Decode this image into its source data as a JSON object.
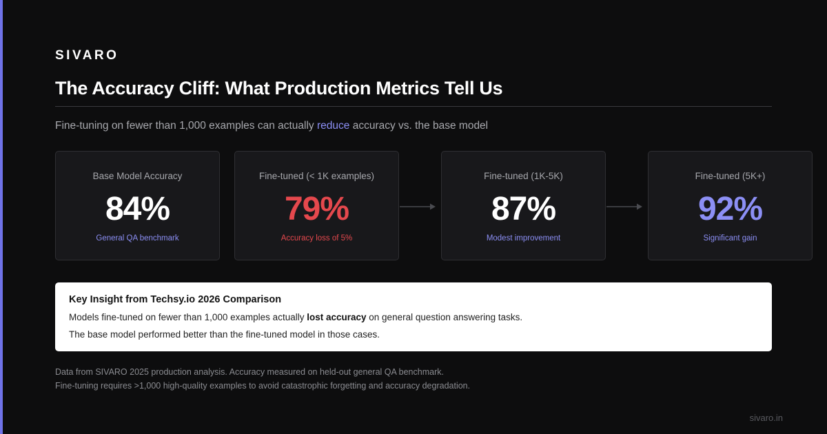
{
  "brand": "SIVARO",
  "title": "The Accuracy Cliff: What Production Metrics Tell Us",
  "subtitle": {
    "before": "Fine-tuning on fewer than 1,000 examples can actually ",
    "highlight": "reduce",
    "after": " accuracy vs. the base model"
  },
  "cards": [
    {
      "label": "Base Model Accuracy",
      "value": "84%",
      "note": "General QA benchmark"
    },
    {
      "label": "Fine-tuned (< 1K examples)",
      "value": "79%",
      "note": "Accuracy loss of 5%"
    },
    {
      "label": "Fine-tuned (1K-5K)",
      "value": "87%",
      "note": "Modest improvement"
    },
    {
      "label": "Fine-tuned (5K+)",
      "value": "92%",
      "note": "Significant gain"
    }
  ],
  "insight": {
    "heading": "Key Insight from Techsy.io 2026 Comparison",
    "line1_before": "Models fine-tuned on fewer than 1,000 examples actually ",
    "line1_bold": "lost accuracy",
    "line1_after": " on general question answering tasks.",
    "line2": "The base model performed better than the fine-tuned model in those cases."
  },
  "footnotes": [
    "Data from SIVARO 2025 production analysis. Accuracy measured on held-out general QA benchmark.",
    "Fine-tuning requires >1,000 high-quality examples to avoid catastrophic forgetting and accuracy degradation."
  ],
  "domain": "sivaro.in",
  "colors": {
    "background": "#0d0d0e",
    "accent": "#8c8ff5",
    "negative": "#e5484d",
    "card": "#18181b"
  }
}
